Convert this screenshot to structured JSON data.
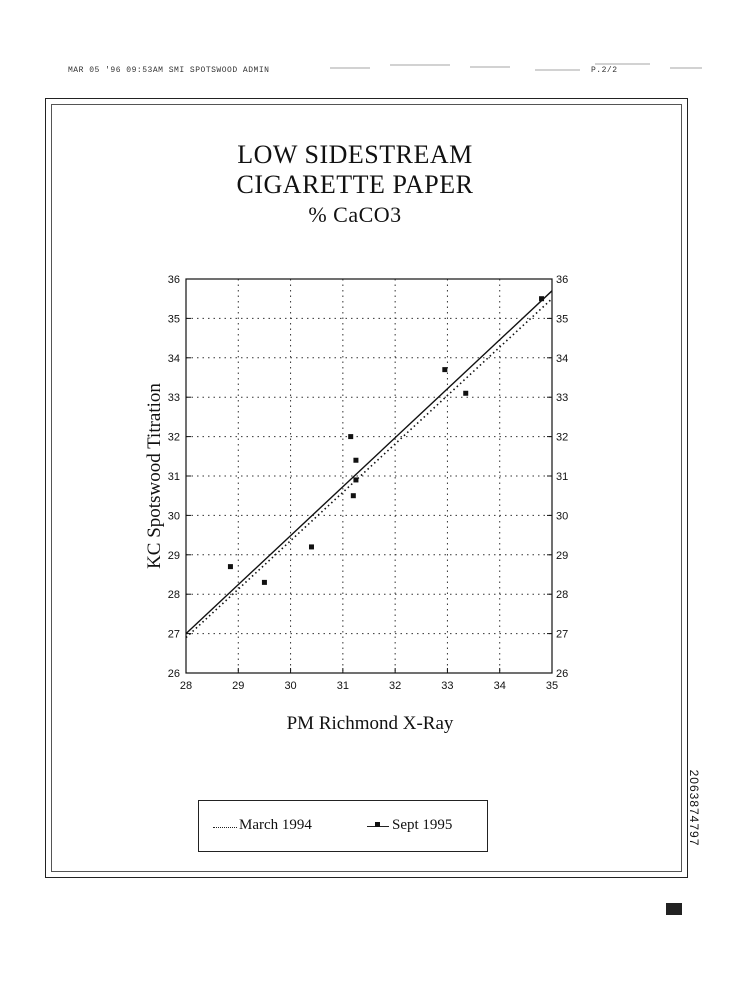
{
  "fax_header": {
    "left_text": "MAR 05 '96  09:53AM SMI SPOTSWOOD ADMIN",
    "page": "P.2/2"
  },
  "chart_data": {
    "type": "scatter",
    "title": "LOW SIDESTREAM\nCIGARETTE PAPER",
    "subtitle": "% CaCO3",
    "xlabel": "PM Richmond X-Ray",
    "ylabel": "KC Spotswood Titration",
    "xlim": [
      28,
      35
    ],
    "ylim": [
      26,
      36
    ],
    "x_ticks": [
      "28",
      "29",
      "30",
      "31",
      "32",
      "33",
      "34",
      "35"
    ],
    "y_ticks": [
      "26",
      "27",
      "28",
      "29",
      "30",
      "31",
      "32",
      "33",
      "34",
      "35",
      "36"
    ],
    "grid": true,
    "legend_position": "bottom",
    "series": [
      {
        "name": "March 1994",
        "style": "dotted-line",
        "line": [
          [
            28,
            26.9
          ],
          [
            35,
            35.5
          ]
        ]
      },
      {
        "name": "Sept 1995",
        "style": "solid-line-with-markers",
        "line": [
          [
            28,
            27.0
          ],
          [
            35,
            35.7
          ]
        ],
        "points": [
          [
            28.85,
            28.7
          ],
          [
            29.5,
            28.3
          ],
          [
            30.4,
            29.2
          ],
          [
            31.15,
            32.0
          ],
          [
            31.25,
            31.4
          ],
          [
            31.25,
            30.9
          ],
          [
            31.2,
            30.5
          ],
          [
            32.95,
            33.7
          ],
          [
            33.35,
            33.1
          ],
          [
            34.8,
            35.5
          ]
        ]
      }
    ]
  },
  "legend": {
    "item1": "March 1994",
    "item2": "Sept 1995"
  },
  "doc_id": "2063874797",
  "colors": {
    "ink": "#111111",
    "paper": "#ffffff"
  }
}
